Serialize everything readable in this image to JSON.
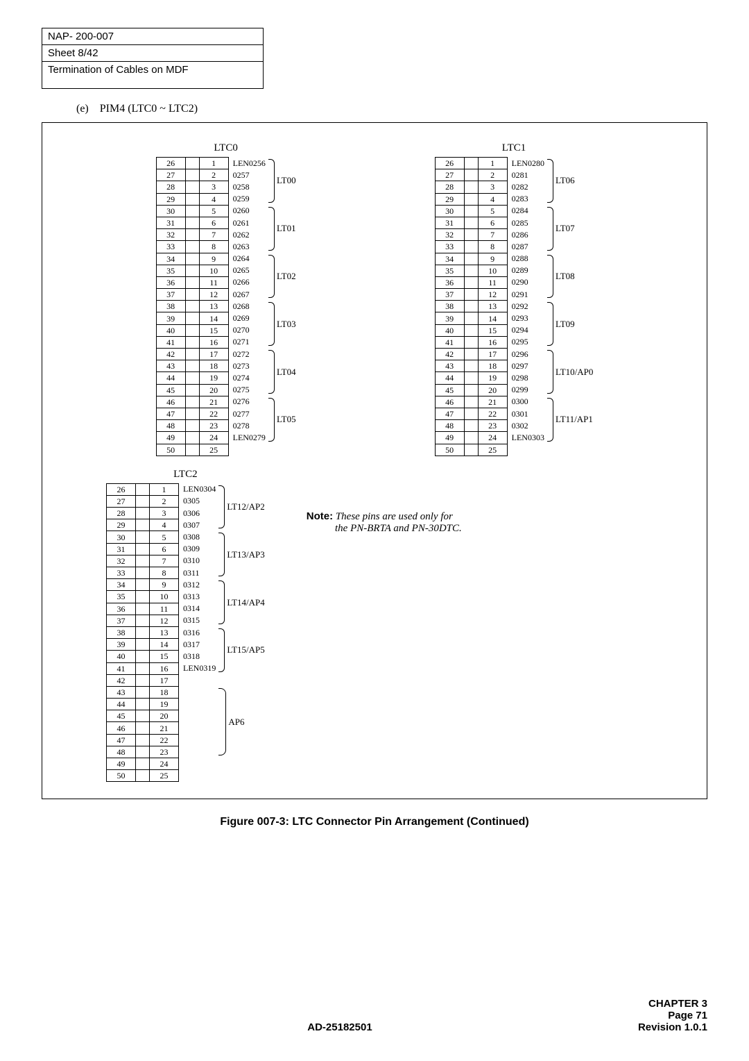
{
  "header": {
    "nap": "NAP- 200-007",
    "sheet": "Sheet 8/42",
    "title": "Termination of Cables on MDF"
  },
  "subsection": {
    "letter": "(e)",
    "text": "PIM4 (LTC0 ~ LTC2)"
  },
  "blocks": {
    "ltc0": {
      "title": "LTC0",
      "left_start": 26,
      "right_start": 1,
      "rows": 25,
      "len_prefix_first": "LEN0256",
      "len_start": 256,
      "len_prefix_last": "LEN0279",
      "groups": [
        "LT00",
        "LT01",
        "LT02",
        "LT03",
        "LT04",
        "LT05"
      ]
    },
    "ltc1": {
      "title": "LTC1",
      "left_start": 26,
      "right_start": 1,
      "rows": 25,
      "len_prefix_first": "LEN0280",
      "len_start": 280,
      "len_prefix_last": "LEN0303",
      "groups": [
        "LT06",
        "LT07",
        "LT08",
        "LT09",
        "LT10/AP0",
        "LT11/AP1"
      ]
    },
    "ltc2": {
      "title": "LTC2",
      "left_start": 26,
      "right_start": 1,
      "rows": 25,
      "len_prefix_first": "LEN0304",
      "len_start": 304,
      "len_prefix_last": "LEN0319",
      "groups": [
        "LT12/AP2",
        "LT13/AP3",
        "LT14/AP4",
        "LT15/AP5"
      ],
      "ap6": "AP6"
    }
  },
  "note": {
    "label": "Note:",
    "line1": "These pins are used only for",
    "line2": "the PN-BRTA and PN-30DTC."
  },
  "caption": "Figure 007-3:  LTC Connector Pin Arrangement (Continued)",
  "footer": {
    "doc": "AD-25182501",
    "chapter": "CHAPTER 3",
    "page": "Page 71",
    "rev": "Revision 1.0.1"
  }
}
